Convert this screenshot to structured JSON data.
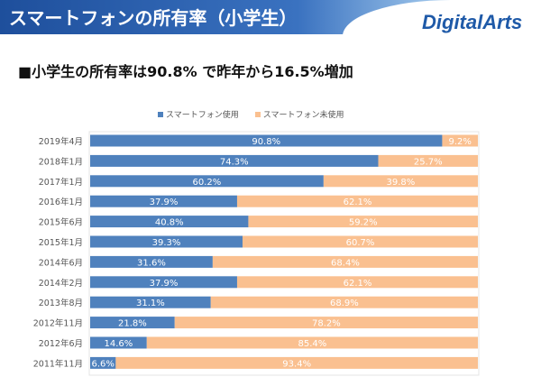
{
  "header": {
    "title": "スマートフォンの所有率（小学生）",
    "logo": "DigitalArts"
  },
  "subtitle": "■小学生の所有率は90.8% で昨年から16.5%増加",
  "colors": {
    "used": "#4f81bd",
    "unused": "#fac090"
  },
  "chart_data": {
    "type": "bar",
    "orientation": "horizontal-stacked-100",
    "categories": [
      "2019年4月",
      "2018年1月",
      "2017年1月",
      "2016年1月",
      "2015年6月",
      "2015年1月",
      "2014年6月",
      "2014年2月",
      "2013年8月",
      "2012年11月",
      "2012年6月",
      "2011年11月"
    ],
    "series": [
      {
        "name": "スマートフォン使用",
        "values": [
          90.8,
          74.3,
          60.2,
          37.9,
          40.8,
          39.3,
          31.6,
          37.9,
          31.1,
          21.8,
          14.6,
          6.6
        ]
      },
      {
        "name": "スマートフォン未使用",
        "values": [
          9.2,
          25.7,
          39.8,
          62.1,
          59.2,
          60.7,
          68.4,
          62.1,
          68.9,
          78.2,
          85.4,
          93.4
        ]
      }
    ],
    "xlim": [
      0,
      100
    ],
    "legend": "top"
  }
}
